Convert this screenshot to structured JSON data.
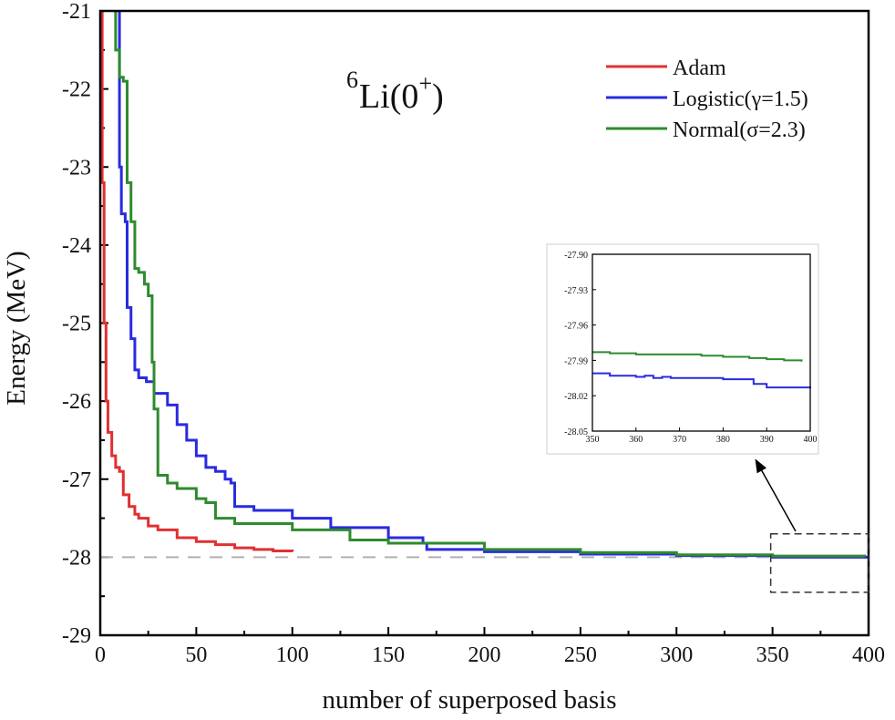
{
  "chart_data": [
    {
      "type": "line",
      "title_parts": {
        "pre": "6",
        "main": "Li(0",
        "sup": "+",
        "post": ")"
      },
      "xlabel": "number of superposed basis",
      "ylabel": "Energy (MeV)",
      "xlim": [
        0,
        400
      ],
      "ylim": [
        -29,
        -21
      ],
      "xticks": [
        0,
        50,
        100,
        150,
        200,
        250,
        300,
        350,
        400
      ],
      "yticks": [
        -21,
        -22,
        -23,
        -24,
        -25,
        -26,
        -27,
        -28,
        -29
      ],
      "legend_position": "top-right",
      "reference_line": {
        "y": -28,
        "style": "dashed",
        "color": "#b0b0b0"
      },
      "zoom_box": {
        "x": [
          350,
          400
        ],
        "y": [
          -28.45,
          -27.7
        ]
      },
      "series": [
        {
          "name": "Adam",
          "color": "#e03030",
          "x": [
            0,
            1,
            2,
            3,
            4,
            6,
            8,
            10,
            12,
            15,
            18,
            20,
            25,
            30,
            40,
            50,
            60,
            70,
            80,
            90,
            100
          ],
          "y": [
            -21,
            -23.2,
            -25.0,
            -26.0,
            -26.4,
            -26.7,
            -26.85,
            -26.9,
            -27.2,
            -27.35,
            -27.45,
            -27.5,
            -27.6,
            -27.65,
            -27.75,
            -27.8,
            -27.84,
            -27.88,
            -27.9,
            -27.92,
            -27.93
          ]
        },
        {
          "name": "Logistic(γ=1.5)",
          "color": "#2a2ae0",
          "x": [
            9,
            10,
            11,
            13,
            14,
            16,
            18,
            20,
            24,
            28,
            35,
            40,
            45,
            50,
            55,
            60,
            65,
            68,
            70,
            80,
            100,
            120,
            150,
            168,
            170,
            200,
            250,
            300,
            350,
            400
          ],
          "y": [
            -21,
            -23.0,
            -23.6,
            -23.7,
            -24.8,
            -25.2,
            -25.6,
            -25.7,
            -25.75,
            -25.9,
            -26.05,
            -26.3,
            -26.5,
            -26.7,
            -26.85,
            -26.9,
            -27.0,
            -27.05,
            -27.35,
            -27.4,
            -27.5,
            -27.62,
            -27.75,
            -27.82,
            -27.9,
            -27.93,
            -27.96,
            -27.98,
            -28.0,
            -28.013
          ]
        },
        {
          "name": "Normal(σ=2.3)",
          "color": "#2e8b2e",
          "x": [
            7,
            8,
            10,
            12,
            14,
            16,
            18,
            20,
            23,
            25,
            27,
            28,
            30,
            35,
            40,
            50,
            55,
            60,
            70,
            100,
            130,
            150,
            200,
            250,
            300,
            350,
            398
          ],
          "y": [
            -21,
            -21.5,
            -21.85,
            -21.9,
            -23.2,
            -23.7,
            -24.3,
            -24.35,
            -24.5,
            -24.65,
            -25.5,
            -26.1,
            -26.95,
            -27.05,
            -27.12,
            -27.25,
            -27.3,
            -27.5,
            -27.57,
            -27.65,
            -27.78,
            -27.82,
            -27.9,
            -27.94,
            -27.97,
            -27.985,
            -27.991
          ]
        }
      ]
    },
    {
      "type": "line",
      "role": "inset",
      "xlim": [
        350,
        400
      ],
      "ylim": [
        -28.05,
        -27.9
      ],
      "xticks": [
        350,
        360,
        370,
        380,
        390,
        400
      ],
      "yticks": [
        "-27.90",
        "-27.93",
        "-27.96",
        "-27.99",
        "-28.02",
        "-28.05"
      ],
      "series": [
        {
          "color": "#2e8b2e",
          "x": [
            350,
            354,
            358,
            360,
            365,
            370,
            375,
            380,
            383,
            386,
            388,
            390,
            394,
            397,
            398
          ],
          "y": [
            -27.983,
            -27.984,
            -27.984,
            -27.985,
            -27.985,
            -27.985,
            -27.986,
            -27.987,
            -27.987,
            -27.988,
            -27.988,
            -27.989,
            -27.99,
            -27.99,
            -27.991
          ]
        },
        {
          "color": "#2a2ae0",
          "x": [
            350,
            353,
            354,
            358,
            360,
            362,
            364,
            366,
            368,
            370,
            375,
            380,
            386,
            387,
            389,
            390,
            395,
            398,
            400
          ],
          "y": [
            -28.001,
            -28.001,
            -28.003,
            -28.003,
            -28.004,
            -28.003,
            -28.005,
            -28.004,
            -28.005,
            -28.005,
            -28.005,
            -28.006,
            -28.006,
            -28.01,
            -28.01,
            -28.013,
            -28.013,
            -28.013,
            -28.012
          ]
        }
      ]
    }
  ]
}
